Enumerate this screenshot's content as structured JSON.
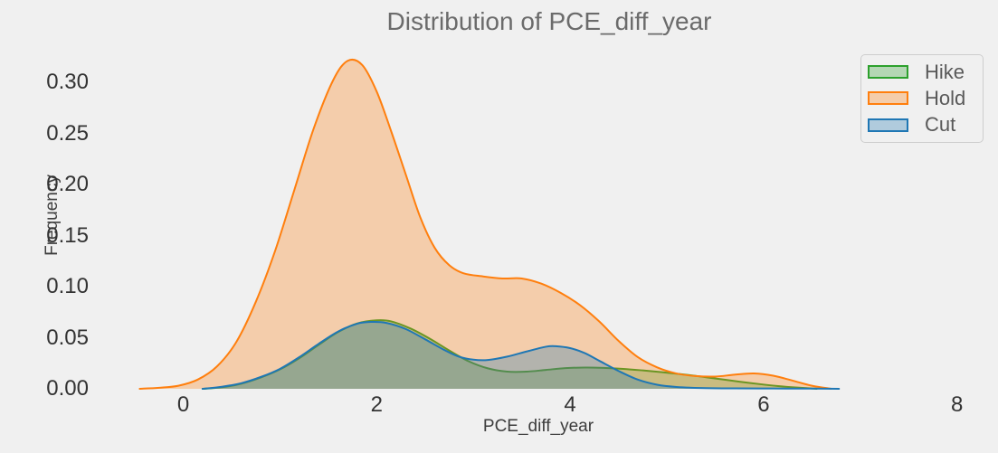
{
  "title": "Distribution of PCE_diff_year",
  "colors": {
    "background": "#f0f0f0",
    "hike": "#2ca02c",
    "hold": "#ff7f0e",
    "cut": "#1f77b4",
    "fill_opacity": 0.3,
    "title_text": "#6b6b6b",
    "tick_text": "#333333",
    "axis_label_text": "#3d3d3d",
    "legend_text": "#595959",
    "legend_border": "#cdcdcd"
  },
  "chart_data": {
    "type": "area",
    "subtype": "kde-density",
    "title": "Distribution of PCE_diff_year",
    "xlabel": "PCE_diff_year",
    "ylabel": "Frequency",
    "x_ticks": [
      0,
      2,
      4,
      6,
      8
    ],
    "y_tick_labels": [
      "0.00",
      "0.05",
      "0.10",
      "0.15",
      "0.20",
      "0.25",
      "0.30"
    ],
    "y_tick_values": [
      0.0,
      0.05,
      0.1,
      0.15,
      0.2,
      0.25,
      0.3
    ],
    "xlim": [
      -0.85,
      8.4
    ],
    "ylim": [
      0,
      0.3365
    ],
    "grid": false,
    "legend_position": "upper right",
    "series": [
      {
        "name": "Hike",
        "color": "#2ca02c",
        "points": [
          [
            0.2,
            0
          ],
          [
            0.4,
            0.0015
          ],
          [
            0.6,
            0.005
          ],
          [
            0.8,
            0.011
          ],
          [
            1.0,
            0.019
          ],
          [
            1.2,
            0.03
          ],
          [
            1.4,
            0.043
          ],
          [
            1.6,
            0.0555
          ],
          [
            1.8,
            0.064
          ],
          [
            2.0,
            0.067
          ],
          [
            2.15,
            0.066
          ],
          [
            2.35,
            0.059
          ],
          [
            2.55,
            0.049
          ],
          [
            2.75,
            0.0375
          ],
          [
            2.95,
            0.027
          ],
          [
            3.15,
            0.02
          ],
          [
            3.35,
            0.0168
          ],
          [
            3.55,
            0.0168
          ],
          [
            3.75,
            0.0185
          ],
          [
            3.95,
            0.0202
          ],
          [
            4.15,
            0.0208
          ],
          [
            4.35,
            0.0205
          ],
          [
            4.55,
            0.0195
          ],
          [
            4.75,
            0.018
          ],
          [
            4.95,
            0.0163
          ],
          [
            5.15,
            0.0143
          ],
          [
            5.35,
            0.012
          ],
          [
            5.55,
            0.0095
          ],
          [
            5.75,
            0.007
          ],
          [
            5.95,
            0.0047
          ],
          [
            6.15,
            0.0027
          ],
          [
            6.35,
            0.0012
          ],
          [
            6.55,
            0
          ]
        ]
      },
      {
        "name": "Hold",
        "color": "#ff7f0e",
        "points": [
          [
            -0.45,
            0
          ],
          [
            -0.25,
            0.001
          ],
          [
            -0.05,
            0.003
          ],
          [
            0.15,
            0.009
          ],
          [
            0.35,
            0.022
          ],
          [
            0.55,
            0.046
          ],
          [
            0.75,
            0.085
          ],
          [
            0.95,
            0.135
          ],
          [
            1.15,
            0.195
          ],
          [
            1.35,
            0.255
          ],
          [
            1.55,
            0.302
          ],
          [
            1.7,
            0.321
          ],
          [
            1.85,
            0.317
          ],
          [
            2.0,
            0.291
          ],
          [
            2.15,
            0.252
          ],
          [
            2.3,
            0.21
          ],
          [
            2.45,
            0.168
          ],
          [
            2.6,
            0.138
          ],
          [
            2.75,
            0.121
          ],
          [
            2.9,
            0.113
          ],
          [
            3.1,
            0.11
          ],
          [
            3.3,
            0.108
          ],
          [
            3.5,
            0.108
          ],
          [
            3.7,
            0.103
          ],
          [
            3.9,
            0.094
          ],
          [
            4.1,
            0.082
          ],
          [
            4.3,
            0.066
          ],
          [
            4.5,
            0.047
          ],
          [
            4.7,
            0.031
          ],
          [
            4.9,
            0.021
          ],
          [
            5.1,
            0.015
          ],
          [
            5.3,
            0.0125
          ],
          [
            5.5,
            0.012
          ],
          [
            5.7,
            0.0138
          ],
          [
            5.9,
            0.015
          ],
          [
            6.1,
            0.0128
          ],
          [
            6.3,
            0.008
          ],
          [
            6.5,
            0.003
          ],
          [
            6.7,
            0
          ]
        ]
      },
      {
        "name": "Cut",
        "color": "#1f77b4",
        "points": [
          [
            0.2,
            0
          ],
          [
            0.4,
            0.002
          ],
          [
            0.6,
            0.0055
          ],
          [
            0.8,
            0.0115
          ],
          [
            1.0,
            0.0195
          ],
          [
            1.2,
            0.031
          ],
          [
            1.4,
            0.044
          ],
          [
            1.6,
            0.056
          ],
          [
            1.8,
            0.0638
          ],
          [
            1.95,
            0.0655
          ],
          [
            2.1,
            0.0645
          ],
          [
            2.3,
            0.0585
          ],
          [
            2.5,
            0.0485
          ],
          [
            2.7,
            0.038
          ],
          [
            2.85,
            0.0315
          ],
          [
            3.0,
            0.0285
          ],
          [
            3.15,
            0.0282
          ],
          [
            3.35,
            0.0315
          ],
          [
            3.55,
            0.0365
          ],
          [
            3.75,
            0.0412
          ],
          [
            3.85,
            0.0417
          ],
          [
            4.0,
            0.0398
          ],
          [
            4.15,
            0.035
          ],
          [
            4.3,
            0.0275
          ],
          [
            4.5,
            0.0175
          ],
          [
            4.7,
            0.009
          ],
          [
            4.9,
            0.004
          ],
          [
            5.1,
            0.0018
          ],
          [
            5.35,
            0.0008
          ],
          [
            5.7,
            0.0004
          ],
          [
            6.1,
            0.0003
          ],
          [
            6.5,
            0.0002
          ],
          [
            6.78,
            0
          ]
        ]
      }
    ]
  },
  "legend": {
    "items": [
      {
        "label": "Hike"
      },
      {
        "label": "Hold"
      },
      {
        "label": "Cut"
      }
    ]
  }
}
